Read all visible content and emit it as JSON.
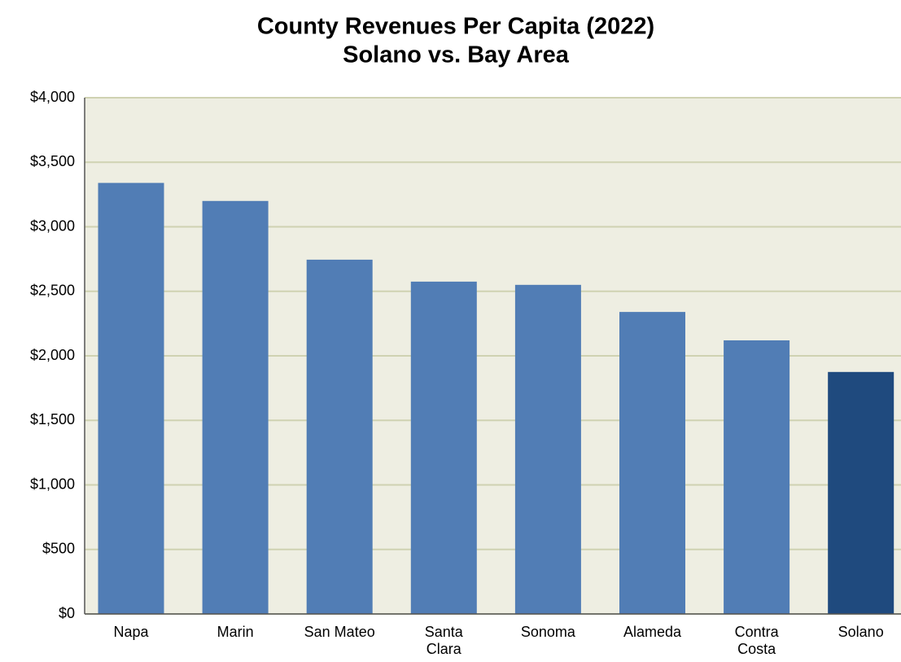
{
  "chart_data": {
    "type": "bar",
    "title": "County Revenues Per Capita (2022)",
    "subtitle": "Solano vs. Bay Area",
    "categories": [
      "Napa",
      "Marin",
      "San Mateo",
      "Santa Clara",
      "Sonoma",
      "Alameda",
      "Contra Costa",
      "Solano"
    ],
    "values": [
      3340,
      3200,
      2745,
      2575,
      2550,
      2340,
      2120,
      1875
    ],
    "colors": [
      "#517db5",
      "#517db5",
      "#517db5",
      "#517db5",
      "#517db5",
      "#517db5",
      "#517db5",
      "#1f4a7e"
    ],
    "ylim": [
      0,
      4000
    ],
    "yticks": [
      {
        "value": 0,
        "label": "$0"
      },
      {
        "value": 500,
        "label": "$500"
      },
      {
        "value": 1000,
        "label": "$1,000"
      },
      {
        "value": 1500,
        "label": "$1,500"
      },
      {
        "value": 2000,
        "label": "$2,000"
      },
      {
        "value": 2500,
        "label": "$2,500"
      },
      {
        "value": 3000,
        "label": "$3,000"
      },
      {
        "value": 3500,
        "label": "$3,500"
      },
      {
        "value": 4000,
        "label": "$4,000"
      }
    ],
    "grid": true
  }
}
